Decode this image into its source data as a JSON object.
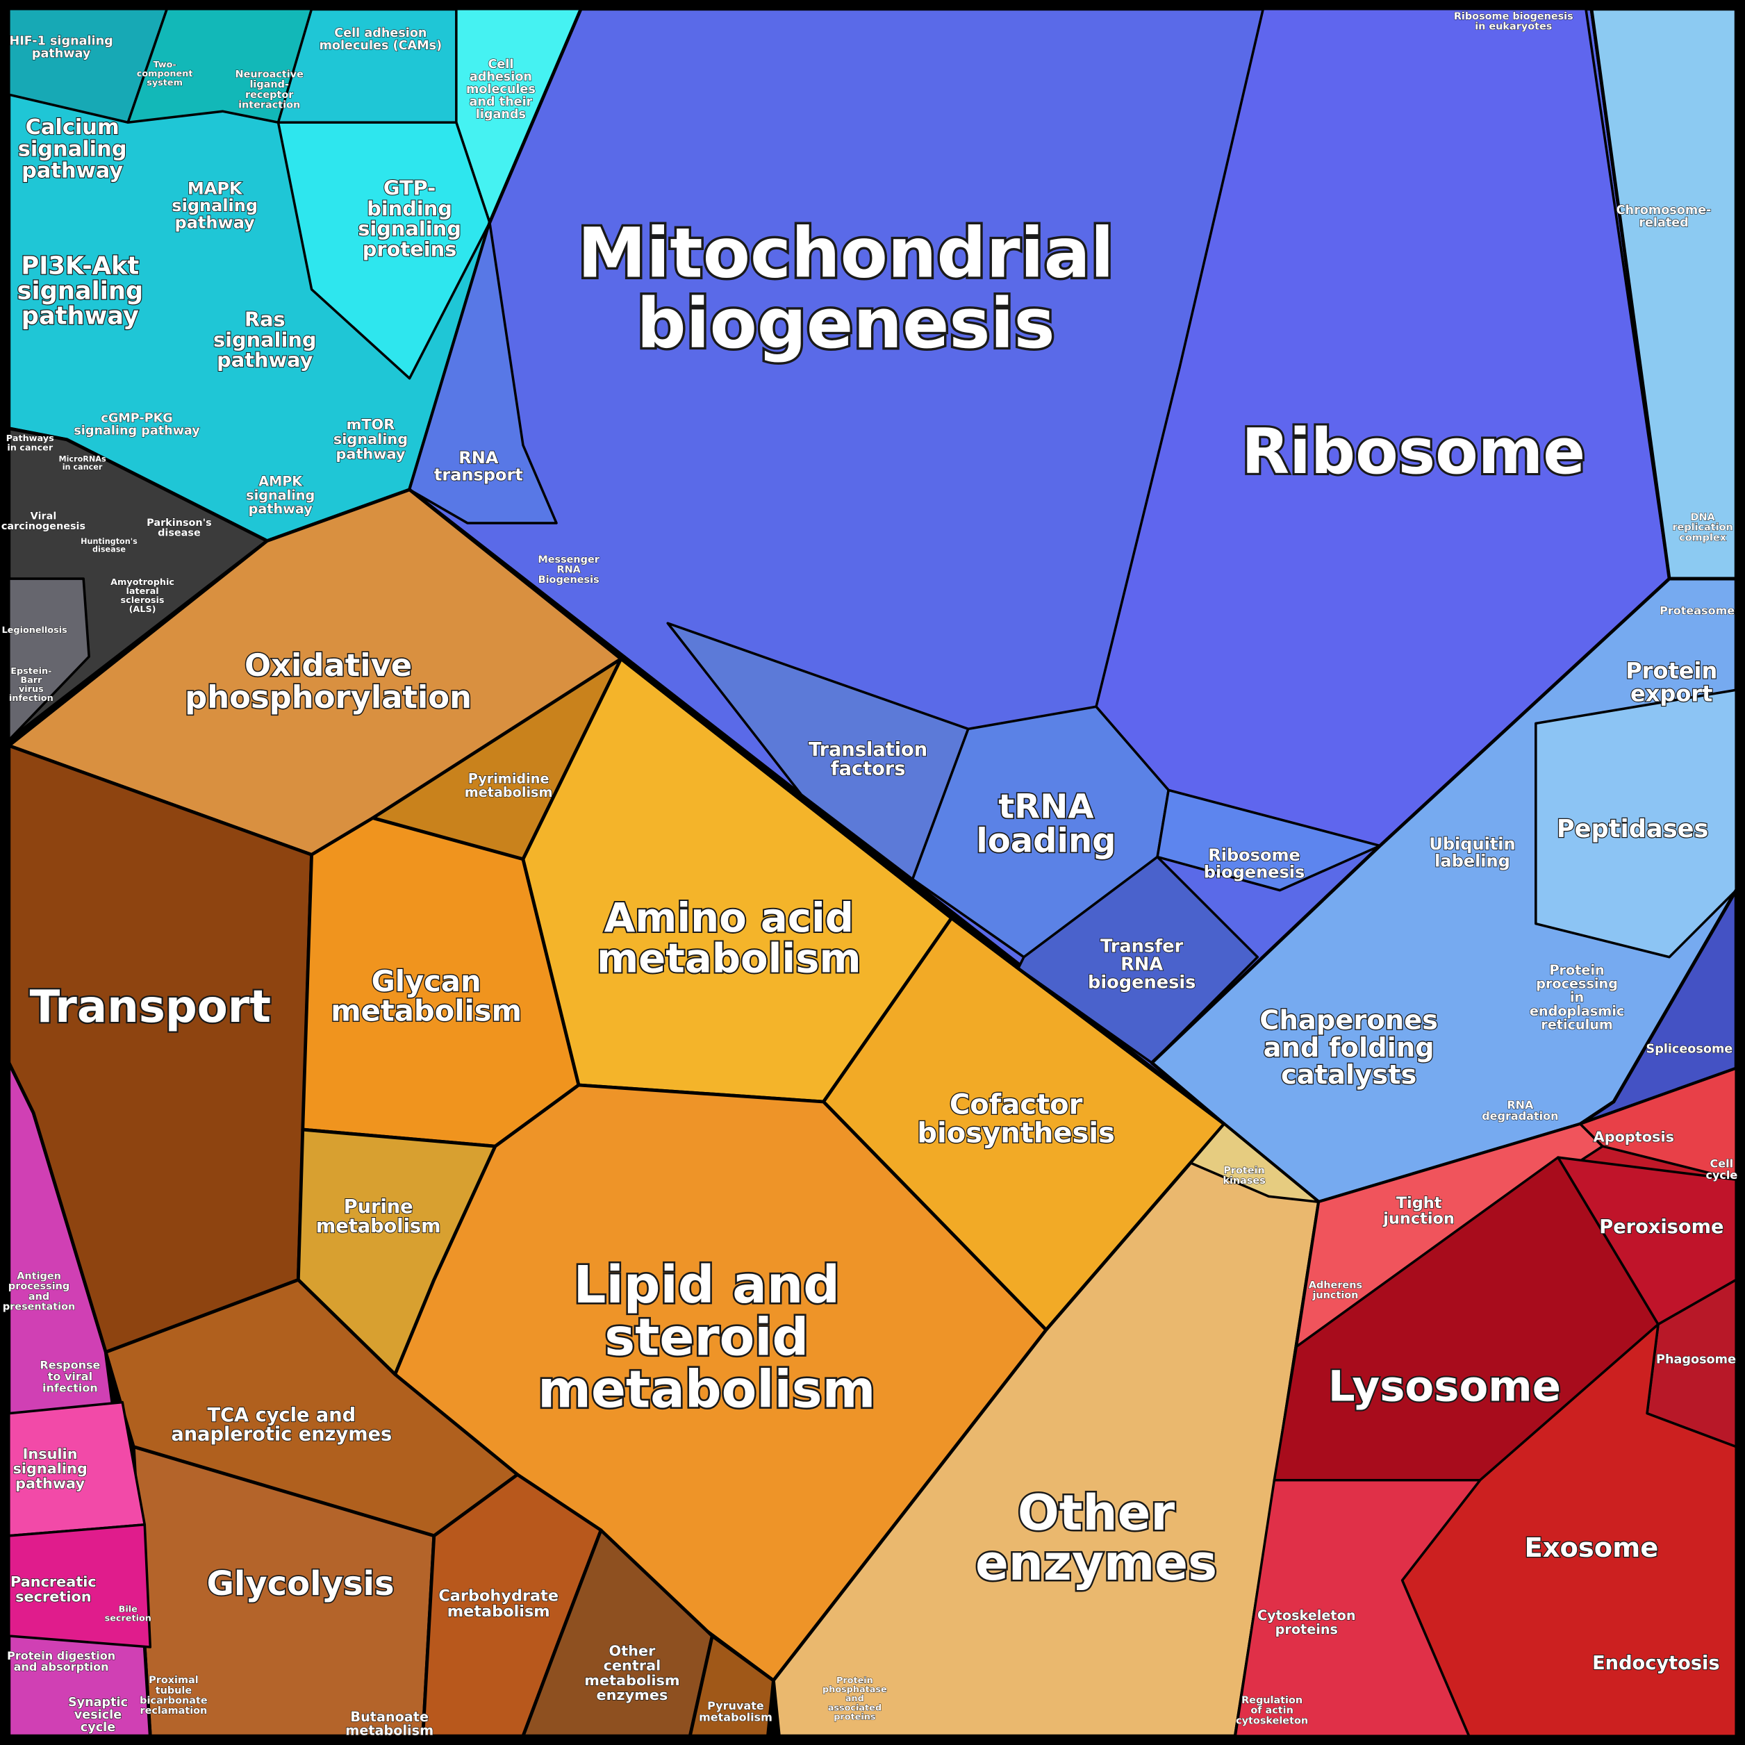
{
  "regions": [
    {
      "label": [
        "Mitochondrial",
        "biogenesis"
      ]
    },
    {
      "label": [
        "Ribosome"
      ]
    },
    {
      "label": [
        "Transport"
      ]
    },
    {
      "label": [
        "Lipid and",
        "steroid",
        "metabolism"
      ]
    },
    {
      "label": [
        "Other",
        "enzymes"
      ]
    },
    {
      "label": [
        "Lysosome"
      ]
    },
    {
      "label": [
        "Oxidative",
        "phosphorylation"
      ]
    },
    {
      "label": [
        "Amino acid",
        "metabolism"
      ]
    },
    {
      "label": [
        "Glycan",
        "metabolism"
      ]
    },
    {
      "label": [
        "Cofactor",
        "biosynthesis"
      ]
    },
    {
      "label": [
        "Glycolysis"
      ]
    },
    {
      "label": [
        "tRNA",
        "loading"
      ]
    },
    {
      "label": [
        "Chaperones",
        "and folding",
        "catalysts"
      ]
    },
    {
      "label": [
        "Peptidases"
      ]
    },
    {
      "label": [
        "Exosome"
      ]
    },
    {
      "label": [
        "Peroxisome"
      ]
    },
    {
      "label": [
        "Endocytosis"
      ]
    },
    {
      "label": [
        "Protein",
        "export"
      ]
    },
    {
      "label": [
        "Ras",
        "signaling",
        "pathway"
      ]
    },
    {
      "label": [
        "PI3K-Akt",
        "signaling",
        "pathway"
      ]
    },
    {
      "label": [
        "Calcium",
        "signaling",
        "pathway"
      ]
    },
    {
      "label": [
        "MAPK",
        "signaling",
        "pathway"
      ]
    },
    {
      "label": [
        "GTP-",
        "binding",
        "signaling",
        "proteins"
      ]
    },
    {
      "label": [
        "mTOR",
        "signaling",
        "pathway"
      ]
    },
    {
      "label": [
        "AMPK",
        "signaling",
        "pathway"
      ]
    },
    {
      "label": [
        "cGMP-PKG",
        "signaling pathway"
      ]
    },
    {
      "label": [
        "HIF-1 signaling",
        "pathway"
      ]
    },
    {
      "label": [
        "Cell adhesion",
        "molecules (CAMs)"
      ]
    },
    {
      "label": [
        "Cell",
        "adhesion",
        "molecules",
        "and their",
        "ligands"
      ]
    },
    {
      "label": [
        "TCA cycle and",
        "anaplerotic enzymes"
      ]
    },
    {
      "label": [
        "Carbohydrate",
        "metabolism"
      ]
    },
    {
      "label": [
        "Purine",
        "metabolism"
      ]
    },
    {
      "label": [
        "Pyrimidine",
        "metabolism"
      ]
    },
    {
      "label": [
        "Other",
        "central",
        "metabolism",
        "enzymes"
      ]
    },
    {
      "label": [
        "Butanoate",
        "metabolism"
      ]
    },
    {
      "label": [
        "Pyruvate",
        "metabolism"
      ]
    },
    {
      "label": [
        "Translation",
        "factors"
      ]
    },
    {
      "label": [
        "RNA",
        "transport"
      ]
    },
    {
      "label": [
        "Messenger",
        "RNA",
        "Biogenesis"
      ]
    },
    {
      "label": [
        "Ribosome",
        "biogenesis"
      ]
    },
    {
      "label": [
        "Transfer",
        "RNA",
        "biogenesis"
      ]
    },
    {
      "label": [
        "Ubiquitin",
        "labeling"
      ]
    },
    {
      "label": [
        "Protein",
        "processing",
        "in",
        "endoplasmic",
        "reticulum"
      ]
    },
    {
      "label": [
        "RNA",
        "degradation"
      ]
    },
    {
      "label": [
        "Spliceosome"
      ]
    },
    {
      "label": [
        "Proteasome"
      ]
    },
    {
      "label": [
        "Chromosome-",
        "related"
      ]
    },
    {
      "label": [
        "DNA",
        "replication",
        "complex"
      ]
    },
    {
      "label": [
        "Ribosome biogenesis",
        "in eukaryotes"
      ]
    },
    {
      "label": [
        "Apoptosis"
      ]
    },
    {
      "label": [
        "Tight",
        "junction"
      ]
    },
    {
      "label": [
        "Phagosome"
      ]
    },
    {
      "label": [
        "Cytoskeleton",
        "proteins"
      ]
    },
    {
      "label": [
        "Regulation",
        "of actin",
        "cytoskeleton"
      ]
    },
    {
      "label": [
        "Adherens",
        "junction"
      ]
    },
    {
      "label": [
        "Protein",
        "kinases"
      ]
    },
    {
      "label": [
        "Protein",
        "phosphatase",
        "and",
        "associated",
        "proteins"
      ]
    },
    {
      "label": [
        "Parkinson's",
        "disease"
      ]
    },
    {
      "label": [
        "Viral",
        "carcinogenesis"
      ]
    },
    {
      "label": [
        "Amyotrophic",
        "lateral",
        "sclerosis",
        "(ALS)"
      ]
    },
    {
      "label": [
        "Huntington's",
        "disease"
      ]
    },
    {
      "label": [
        "Pathways",
        "in cancer"
      ]
    },
    {
      "label": [
        "Legionellosis"
      ]
    },
    {
      "label": [
        "Epstein-",
        "Barr",
        "virus",
        "infection"
      ]
    },
    {
      "label": [
        "Insulin",
        "signaling",
        "pathway"
      ]
    },
    {
      "label": [
        "Pancreatic",
        "secretion"
      ]
    },
    {
      "label": [
        "Protein digestion",
        "and absorption"
      ]
    },
    {
      "label": [
        "Synaptic",
        "vesicle",
        "cycle"
      ]
    },
    {
      "label": [
        "Proximal",
        "tubule",
        "bicarbonate",
        "reclamation"
      ]
    },
    {
      "label": [
        "Bile",
        "secretion"
      ]
    },
    {
      "label": [
        "Response",
        "to viral",
        "infection"
      ]
    },
    {
      "label": [
        "Antigen",
        "processing",
        "and",
        "presentation"
      ]
    },
    {
      "label": [
        "Two-",
        "component",
        "system"
      ]
    },
    {
      "label": [
        "Neuroactive",
        "ligand-",
        "receptor",
        "interaction"
      ]
    },
    {
      "label": [
        "Cell",
        "cycle"
      ]
    },
    {
      "label": [
        "MicroRNAs",
        "in cancer"
      ]
    }
  ]
}
